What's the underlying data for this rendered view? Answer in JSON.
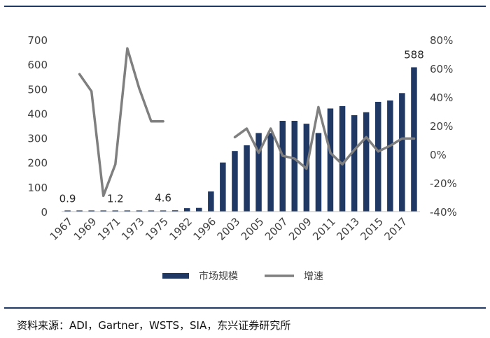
{
  "colors": {
    "bar": "#1f3864",
    "line": "#7f7f7f",
    "rule": "#1f3864",
    "text": "#404040"
  },
  "chart_data": {
    "type": "bar",
    "title": "",
    "categories": [
      "1967",
      "1968",
      "1969",
      "1970",
      "1971",
      "1972",
      "1973",
      "1974",
      "1975",
      "1976",
      "1982",
      "1990",
      "1996",
      "2000",
      "2003",
      "2004",
      "2005",
      "2006",
      "2007",
      "2008",
      "2009",
      "2010",
      "2011",
      "2012",
      "2013",
      "2014",
      "2015",
      "2016",
      "2017",
      "2018"
    ],
    "tick_labels": [
      "1967",
      "1969",
      "1971",
      "1973",
      "1975",
      "1982",
      "1996",
      "2003",
      "2005",
      "2007",
      "2009",
      "2011",
      "2013",
      "2015",
      "2017"
    ],
    "tick_label_indices": [
      0,
      2,
      4,
      6,
      8,
      10,
      12,
      14,
      16,
      18,
      20,
      22,
      24,
      26,
      28
    ],
    "series": [
      {
        "name": "市场规模",
        "type": "bar",
        "axis": "left",
        "values": [
          0.9,
          1.0,
          1.0,
          1.1,
          1.2,
          1.5,
          1.6,
          1.8,
          4.6,
          5.0,
          14,
          15,
          82,
          200,
          247,
          270,
          320,
          320,
          370,
          370,
          358,
          320,
          420,
          430,
          393,
          405,
          447,
          453,
          483,
          588
        ]
      },
      {
        "name": "增速",
        "type": "line",
        "axis": "right",
        "values": [
          null,
          56,
          44,
          -29,
          -7,
          74,
          46,
          23,
          23,
          null,
          null,
          null,
          null,
          null,
          12,
          18,
          1,
          18,
          -1,
          -3,
          -10,
          33,
          1,
          -7,
          3,
          12,
          2,
          6,
          11,
          11
        ]
      }
    ],
    "data_labels": [
      {
        "index": 0,
        "text": "0.9"
      },
      {
        "index": 4,
        "text": "1.2"
      },
      {
        "index": 8,
        "text": "4.6"
      },
      {
        "index": 29,
        "text": "588"
      }
    ],
    "ylim_left": [
      0,
      700
    ],
    "yticks_left": [
      0,
      100,
      200,
      300,
      400,
      500,
      600,
      700
    ],
    "ylim_right": [
      -40,
      80
    ],
    "yticks_right": [
      "-40%",
      "-20%",
      "0%",
      "20%",
      "40%",
      "60%",
      "80%"
    ],
    "yticks_right_values": [
      -40,
      -20,
      0,
      20,
      40,
      60,
      80
    ],
    "legend": {
      "position": "bottom",
      "items": [
        "市场规模",
        "增速"
      ]
    }
  },
  "footer": {
    "source": "资料来源：ADI，Gartner，WSTS，SIA，东兴证券研究所"
  }
}
